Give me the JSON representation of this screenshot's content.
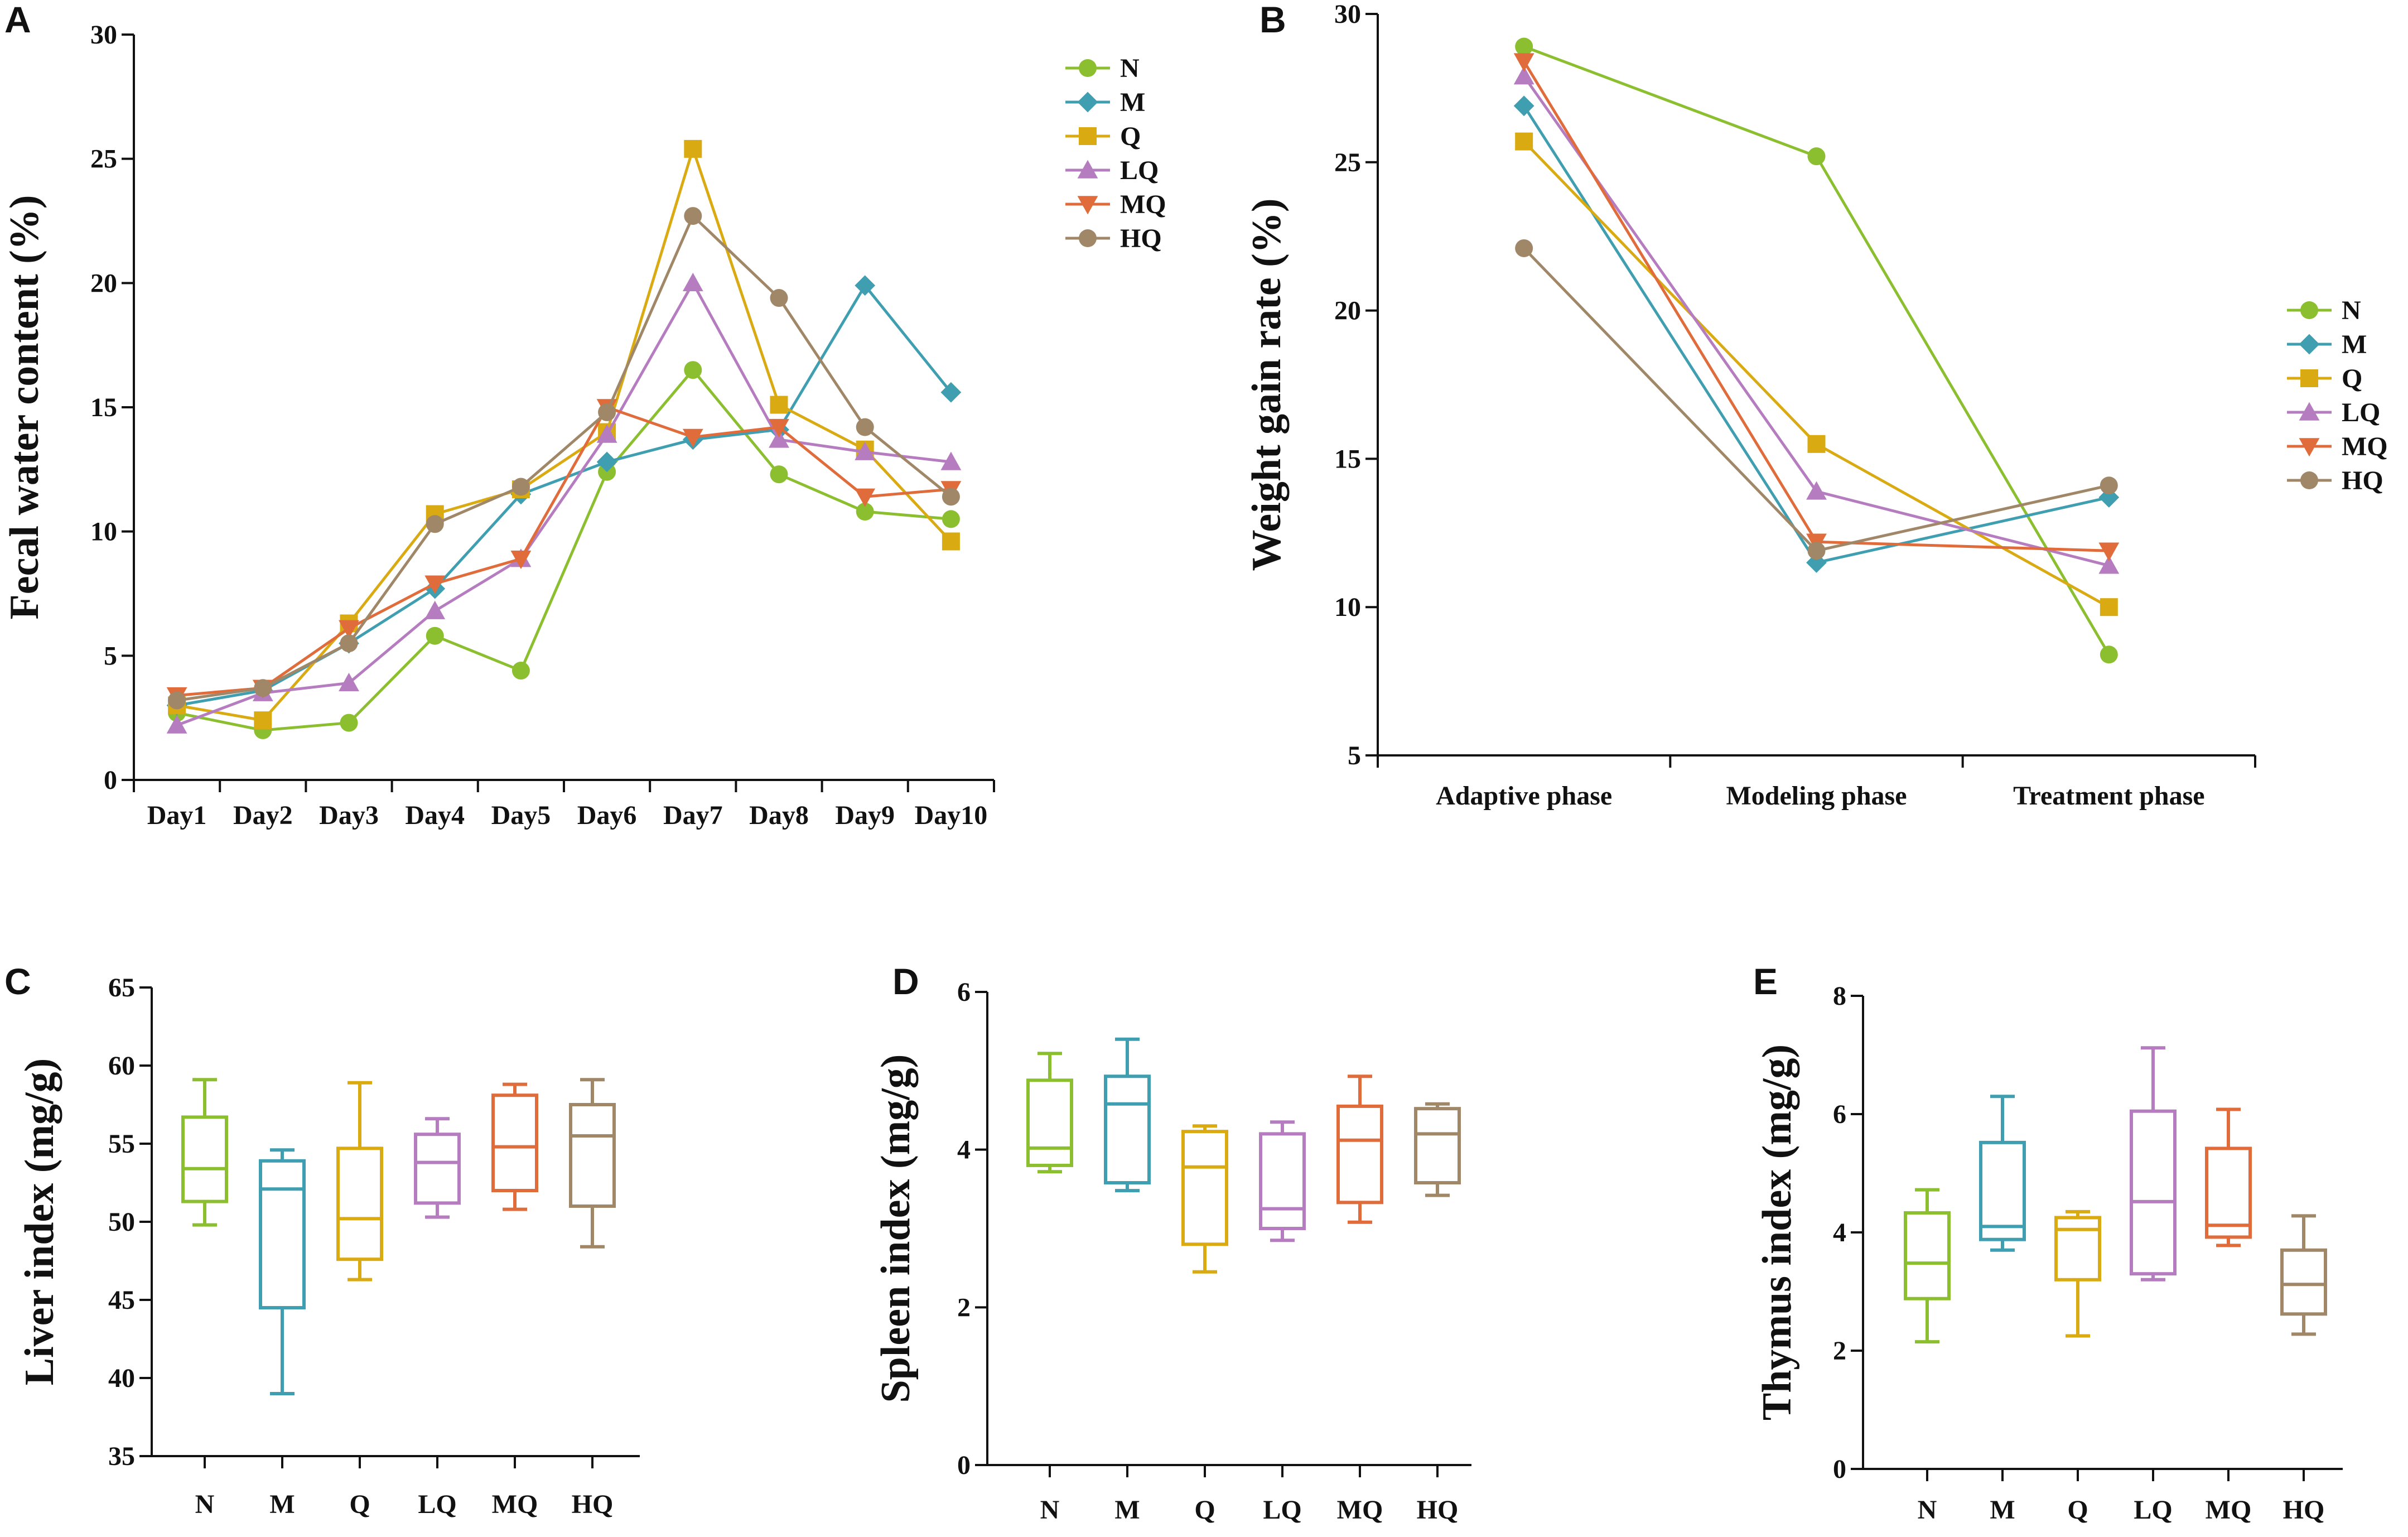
{
  "colors": {
    "N": "#8cbf2f",
    "M": "#3f9fb0",
    "Q": "#d9aa12",
    "LQ": "#b67cc0",
    "MQ": "#e06b3b",
    "HQ": "#a08767"
  },
  "chart_data": [
    {
      "id": "A",
      "panel": "A",
      "type": "line",
      "title": "",
      "xlabel": "",
      "ylabel": "Fecal water content (%)",
      "categories": [
        "Day1",
        "Day2",
        "Day3",
        "Day4",
        "Day5",
        "Day6",
        "Day7",
        "Day8",
        "Day9",
        "Day10"
      ],
      "ylim": [
        0,
        30
      ],
      "yticks": [
        0,
        5,
        10,
        15,
        20,
        25,
        30
      ],
      "legend_position": "top-right",
      "series": [
        {
          "name": "N",
          "marker": "circle",
          "values": [
            2.7,
            2.0,
            2.3,
            5.8,
            4.4,
            12.4,
            16.5,
            12.3,
            10.8,
            10.5
          ]
        },
        {
          "name": "M",
          "marker": "diamond",
          "values": [
            3.0,
            3.6,
            5.5,
            7.7,
            11.5,
            12.8,
            13.7,
            14.1,
            19.9,
            15.6
          ]
        },
        {
          "name": "Q",
          "marker": "square",
          "values": [
            3.0,
            2.4,
            6.3,
            10.7,
            11.7,
            14.0,
            25.4,
            15.1,
            13.3,
            9.6
          ]
        },
        {
          "name": "LQ",
          "marker": "triangle",
          "values": [
            2.2,
            3.5,
            3.9,
            6.8,
            8.9,
            13.9,
            20.0,
            13.7,
            13.2,
            12.8
          ]
        },
        {
          "name": "MQ",
          "marker": "triangle-down",
          "values": [
            3.4,
            3.7,
            6.1,
            7.9,
            8.9,
            15.0,
            13.8,
            14.2,
            11.4,
            11.7
          ]
        },
        {
          "name": "HQ",
          "marker": "circle",
          "values": [
            3.2,
            3.7,
            5.5,
            10.3,
            11.8,
            14.8,
            22.7,
            19.4,
            14.2,
            11.4
          ]
        }
      ]
    },
    {
      "id": "B",
      "panel": "B",
      "type": "line",
      "title": "",
      "xlabel": "",
      "ylabel": "Weight gain rate (%)",
      "categories": [
        "Adaptive phase",
        "Modeling phase",
        "Treatment phase"
      ],
      "ylim": [
        5,
        30
      ],
      "yticks": [
        5,
        10,
        15,
        20,
        25,
        30
      ],
      "legend_position": "right",
      "series": [
        {
          "name": "N",
          "marker": "circle",
          "values": [
            28.9,
            25.2,
            8.4
          ]
        },
        {
          "name": "M",
          "marker": "diamond",
          "values": [
            26.9,
            11.5,
            13.7
          ]
        },
        {
          "name": "Q",
          "marker": "square",
          "values": [
            25.7,
            15.5,
            10.0
          ]
        },
        {
          "name": "LQ",
          "marker": "triangle",
          "values": [
            27.9,
            13.9,
            11.4
          ]
        },
        {
          "name": "MQ",
          "marker": "triangle-down",
          "values": [
            28.4,
            12.2,
            11.9
          ]
        },
        {
          "name": "HQ",
          "marker": "circle",
          "values": [
            22.1,
            11.9,
            14.1
          ]
        }
      ]
    },
    {
      "id": "C",
      "panel": "C",
      "type": "box",
      "ylabel": "Liver index (mg/g)",
      "categories": [
        "N",
        "M",
        "Q",
        "LQ",
        "MQ",
        "HQ"
      ],
      "ylim": [
        35,
        65
      ],
      "yticks": [
        35,
        40,
        45,
        50,
        55,
        60,
        65
      ],
      "boxes": [
        {
          "name": "N",
          "min": 49.8,
          "q1": 51.3,
          "median": 53.4,
          "q3": 56.7,
          "max": 59.1
        },
        {
          "name": "M",
          "min": 39.0,
          "q1": 44.5,
          "median": 52.1,
          "q3": 53.9,
          "max": 54.6
        },
        {
          "name": "Q",
          "min": 46.3,
          "q1": 47.6,
          "median": 50.2,
          "q3": 54.7,
          "max": 58.9
        },
        {
          "name": "LQ",
          "min": 50.3,
          "q1": 51.2,
          "median": 53.8,
          "q3": 55.6,
          "max": 56.6
        },
        {
          "name": "MQ",
          "min": 50.8,
          "q1": 52.0,
          "median": 54.8,
          "q3": 58.1,
          "max": 58.8
        },
        {
          "name": "HQ",
          "min": 48.4,
          "q1": 51.0,
          "median": 55.5,
          "q3": 57.5,
          "max": 59.1
        }
      ]
    },
    {
      "id": "D",
      "panel": "D",
      "type": "box",
      "ylabel": "Spleen index (mg/g)",
      "categories": [
        "N",
        "M",
        "Q",
        "LQ",
        "MQ",
        "HQ"
      ],
      "ylim": [
        0,
        6
      ],
      "yticks": [
        0,
        2,
        4,
        6
      ],
      "boxes": [
        {
          "name": "N",
          "min": 3.72,
          "q1": 3.8,
          "median": 4.02,
          "q3": 4.88,
          "max": 5.22
        },
        {
          "name": "M",
          "min": 3.48,
          "q1": 3.58,
          "median": 4.58,
          "q3": 4.93,
          "max": 5.4
        },
        {
          "name": "Q",
          "min": 2.45,
          "q1": 2.8,
          "median": 3.78,
          "q3": 4.23,
          "max": 4.3
        },
        {
          "name": "LQ",
          "min": 2.85,
          "q1": 3.0,
          "median": 3.25,
          "q3": 4.2,
          "max": 4.35
        },
        {
          "name": "MQ",
          "min": 3.08,
          "q1": 3.33,
          "median": 4.12,
          "q3": 4.55,
          "max": 4.93
        },
        {
          "name": "HQ",
          "min": 3.42,
          "q1": 3.58,
          "median": 4.2,
          "q3": 4.52,
          "max": 4.58
        }
      ]
    },
    {
      "id": "E",
      "panel": "E",
      "type": "box",
      "ylabel": "Thymus index (mg/g)",
      "categories": [
        "N",
        "M",
        "Q",
        "LQ",
        "MQ",
        "HQ"
      ],
      "ylim": [
        0,
        8
      ],
      "yticks": [
        0,
        2,
        4,
        6,
        8
      ],
      "boxes": [
        {
          "name": "N",
          "min": 2.15,
          "q1": 2.88,
          "median": 3.48,
          "q3": 4.33,
          "max": 4.72
        },
        {
          "name": "M",
          "min": 3.7,
          "q1": 3.88,
          "median": 4.1,
          "q3": 5.52,
          "max": 6.3
        },
        {
          "name": "Q",
          "min": 2.25,
          "q1": 3.2,
          "median": 4.05,
          "q3": 4.25,
          "max": 4.35
        },
        {
          "name": "LQ",
          "min": 3.2,
          "q1": 3.3,
          "median": 4.52,
          "q3": 6.05,
          "max": 7.12
        },
        {
          "name": "MQ",
          "min": 3.78,
          "q1": 3.92,
          "median": 4.12,
          "q3": 5.42,
          "max": 6.08
        },
        {
          "name": "HQ",
          "min": 2.28,
          "q1": 2.62,
          "median": 3.12,
          "q3": 3.7,
          "max": 4.28
        }
      ]
    }
  ]
}
